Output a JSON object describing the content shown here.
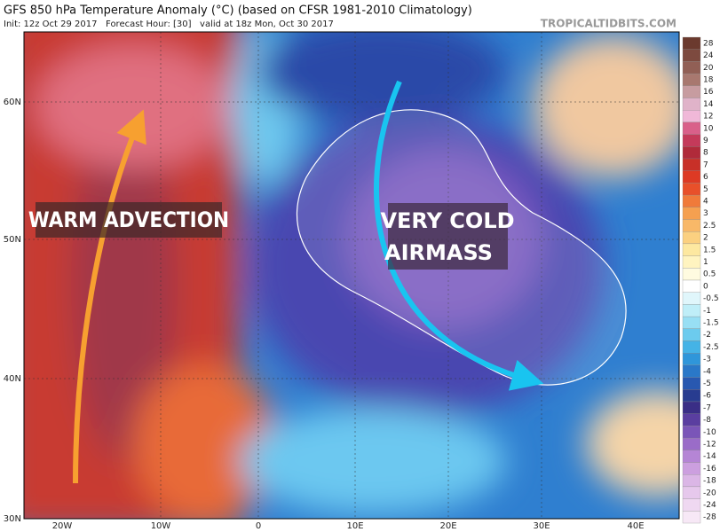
{
  "header": {
    "title": "GFS 850 hPa Temperature Anomaly (°C) (based on CFSR 1981-2010 Climatology)",
    "subtitle": "Init: 12z Oct 29 2017   Forecast Hour: [30]   valid at 18z Mon, Oct 30 2017",
    "brand": "TROPICALTIDBITS.COM"
  },
  "annotations": {
    "warm": "WARM ADVECTION",
    "cold_line1": "VERY COLD",
    "cold_line2": "AIRMASS"
  },
  "map": {
    "lat_labels": [
      "60N",
      "50N",
      "40N",
      "30N"
    ],
    "lon_labels": [
      "20W",
      "10W",
      "0",
      "10E",
      "20E",
      "30E",
      "40E"
    ]
  },
  "colorbar": {
    "labels": [
      "28",
      "24",
      "20",
      "18",
      "16",
      "14",
      "12",
      "10",
      "9",
      "8",
      "7",
      "6",
      "5",
      "4",
      "3",
      "2.5",
      "2",
      "1.5",
      "1",
      "0.5",
      "0",
      "-0.5",
      "-1",
      "-1.5",
      "-2",
      "-2.5",
      "-3",
      "-4",
      "-5",
      "-6",
      "-7",
      "-8",
      "-10",
      "-12",
      "-14",
      "-16",
      "-18",
      "-20",
      "-24",
      "-28"
    ],
    "colors": [
      "#6b3a2e",
      "#7d4a3f",
      "#915f55",
      "#a8786f",
      "#c79ca0",
      "#e0b3c9",
      "#f0b8d8",
      "#d9608a",
      "#c43a5a",
      "#b02a3a",
      "#c83028",
      "#dd3a24",
      "#e8502a",
      "#f07a3a",
      "#f5a050",
      "#f8b868",
      "#fbd080",
      "#fde8a0",
      "#fff4c0",
      "#fffbe0",
      "#ffffff",
      "#e0f6fb",
      "#bfeef8",
      "#98dff4",
      "#6ccbee",
      "#45b3e6",
      "#2f96da",
      "#2a78c8",
      "#2858b0",
      "#283c90",
      "#3a2e86",
      "#5a3ea0",
      "#7a55b8",
      "#9a6cc8",
      "#b585d5",
      "#cc9fdf",
      "#dbb6e6",
      "#e6c8ec",
      "#efd8f1",
      "#f7e8f6"
    ]
  }
}
